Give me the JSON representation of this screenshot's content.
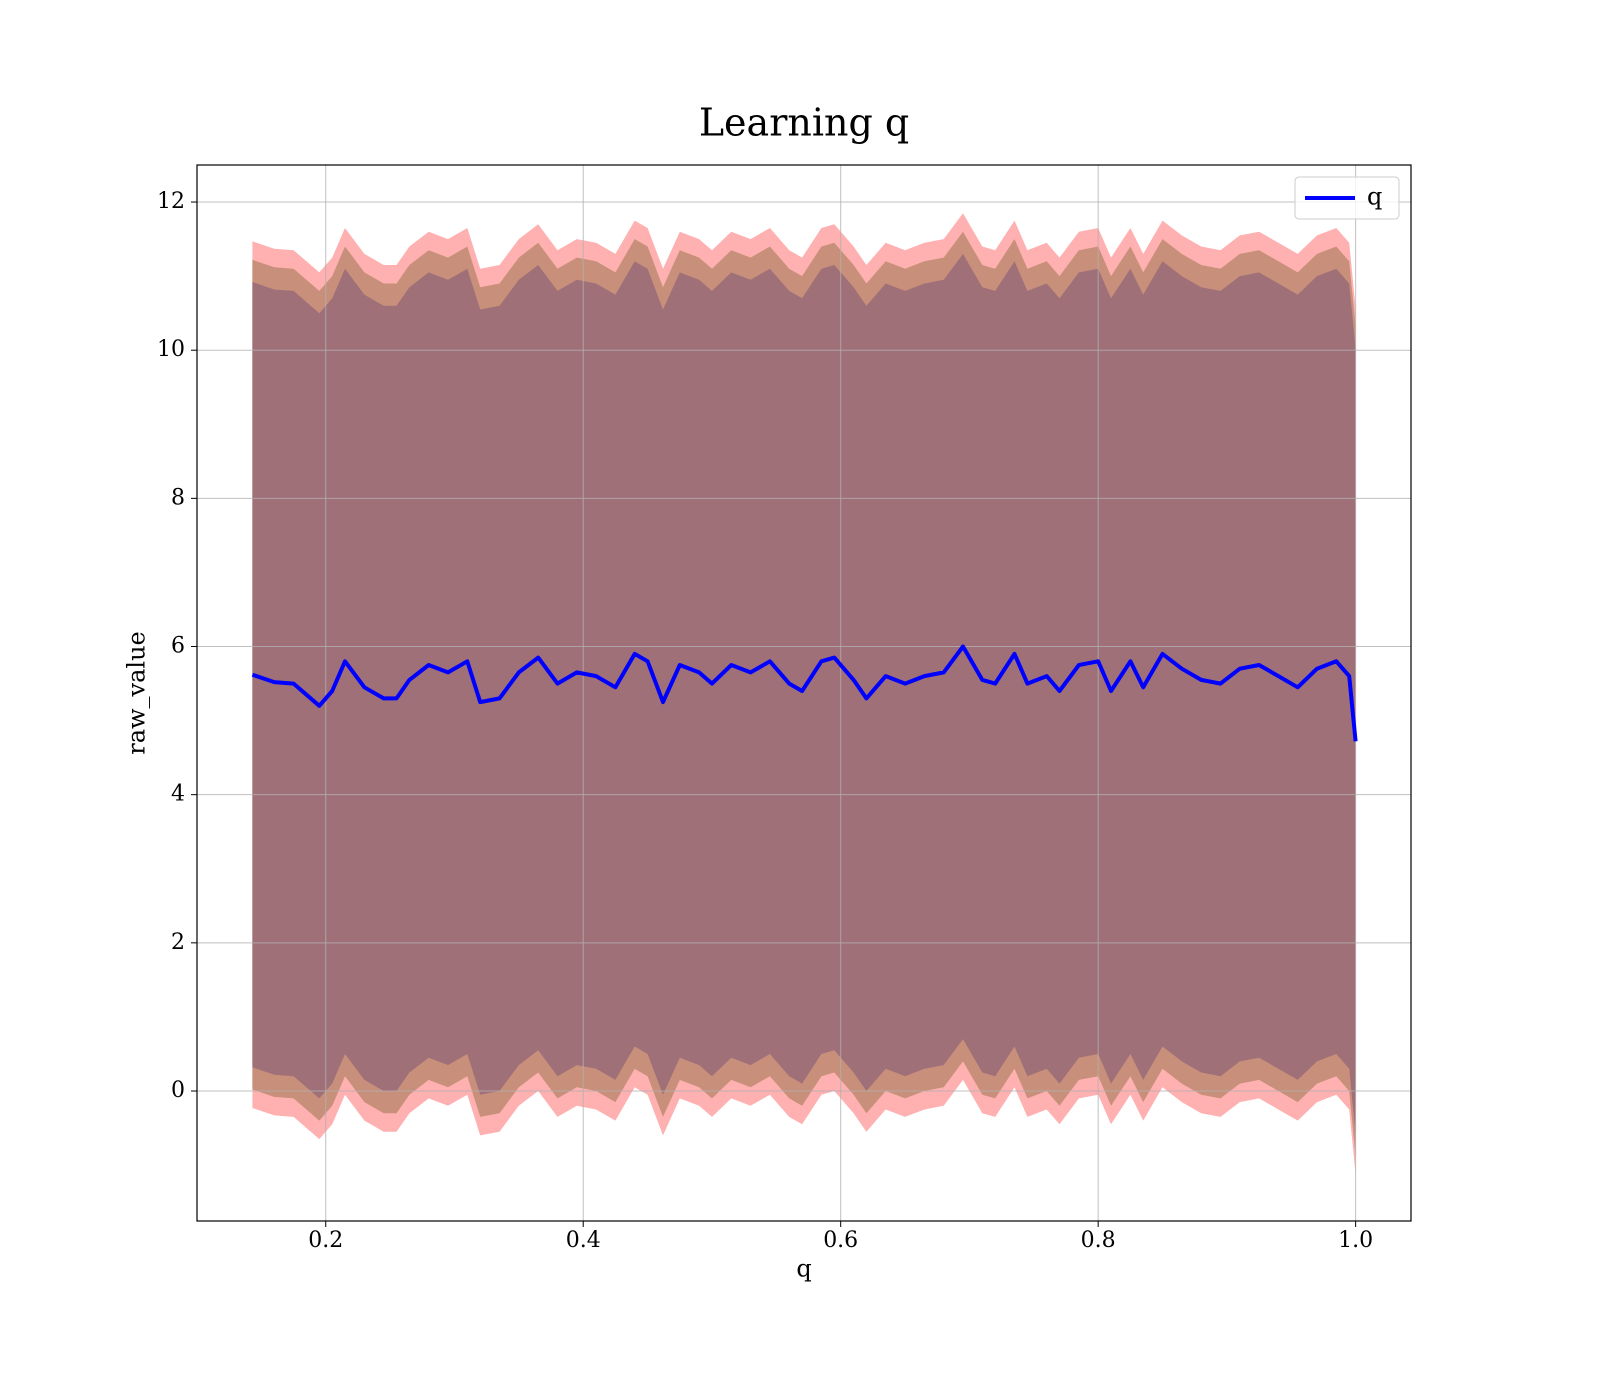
{
  "chart_data": {
    "type": "line",
    "title": "Learning q",
    "x_label": "q",
    "y_label": "raw_value",
    "xlim": [
      0.1,
      1.043
    ],
    "ylim": [
      -1.755,
      12.5
    ],
    "xticks": [
      0.2,
      0.4,
      0.6,
      0.8,
      {
        "value": 1,
        "label": "1.0"
      }
    ],
    "yticks": [
      0,
      2,
      4,
      6,
      8,
      10,
      12
    ],
    "grid": true,
    "legend": "upper right",
    "x": [
      0.143,
      0.16,
      0.175,
      0.195,
      0.205,
      0.215,
      0.23,
      0.245,
      0.255,
      0.265,
      0.28,
      0.295,
      0.31,
      0.32,
      0.335,
      0.35,
      0.365,
      0.38,
      0.395,
      0.41,
      0.425,
      0.44,
      0.45,
      0.462,
      0.475,
      0.49,
      0.5,
      0.515,
      0.53,
      0.545,
      0.56,
      0.57,
      0.585,
      0.595,
      0.61,
      0.62,
      0.635,
      0.65,
      0.665,
      0.68,
      0.695,
      0.71,
      0.72,
      0.735,
      0.745,
      0.76,
      0.77,
      0.785,
      0.8,
      0.81,
      0.825,
      0.835,
      0.85,
      0.865,
      0.88,
      0.895,
      0.91,
      0.925,
      0.94,
      0.955,
      0.97,
      0.985,
      0.995,
      1.0
    ],
    "series": [
      {
        "name": "q",
        "color": "#0000ff",
        "values": [
          5.62,
          5.52,
          5.5,
          5.2,
          5.4,
          5.8,
          5.45,
          5.3,
          5.3,
          5.55,
          5.75,
          5.65,
          5.8,
          5.25,
          5.3,
          5.65,
          5.85,
          5.5,
          5.65,
          5.6,
          5.45,
          5.9,
          5.8,
          5.25,
          5.75,
          5.65,
          5.5,
          5.75,
          5.65,
          5.8,
          5.5,
          5.4,
          5.8,
          5.85,
          5.55,
          5.3,
          5.6,
          5.5,
          5.6,
          5.65,
          6.0,
          5.55,
          5.5,
          5.9,
          5.5,
          5.6,
          5.4,
          5.75,
          5.8,
          5.4,
          5.8,
          5.45,
          5.9,
          5.7,
          5.55,
          5.5,
          5.7,
          5.75,
          5.6,
          5.45,
          5.7,
          5.8,
          5.6,
          4.72
        ]
      }
    ],
    "bands": [
      {
        "error": 5.85,
        "color": "#ffb0b0"
      },
      {
        "error": 5.6,
        "color": "#c8907a"
      },
      {
        "error": 5.3,
        "color": "#a07079"
      }
    ]
  }
}
